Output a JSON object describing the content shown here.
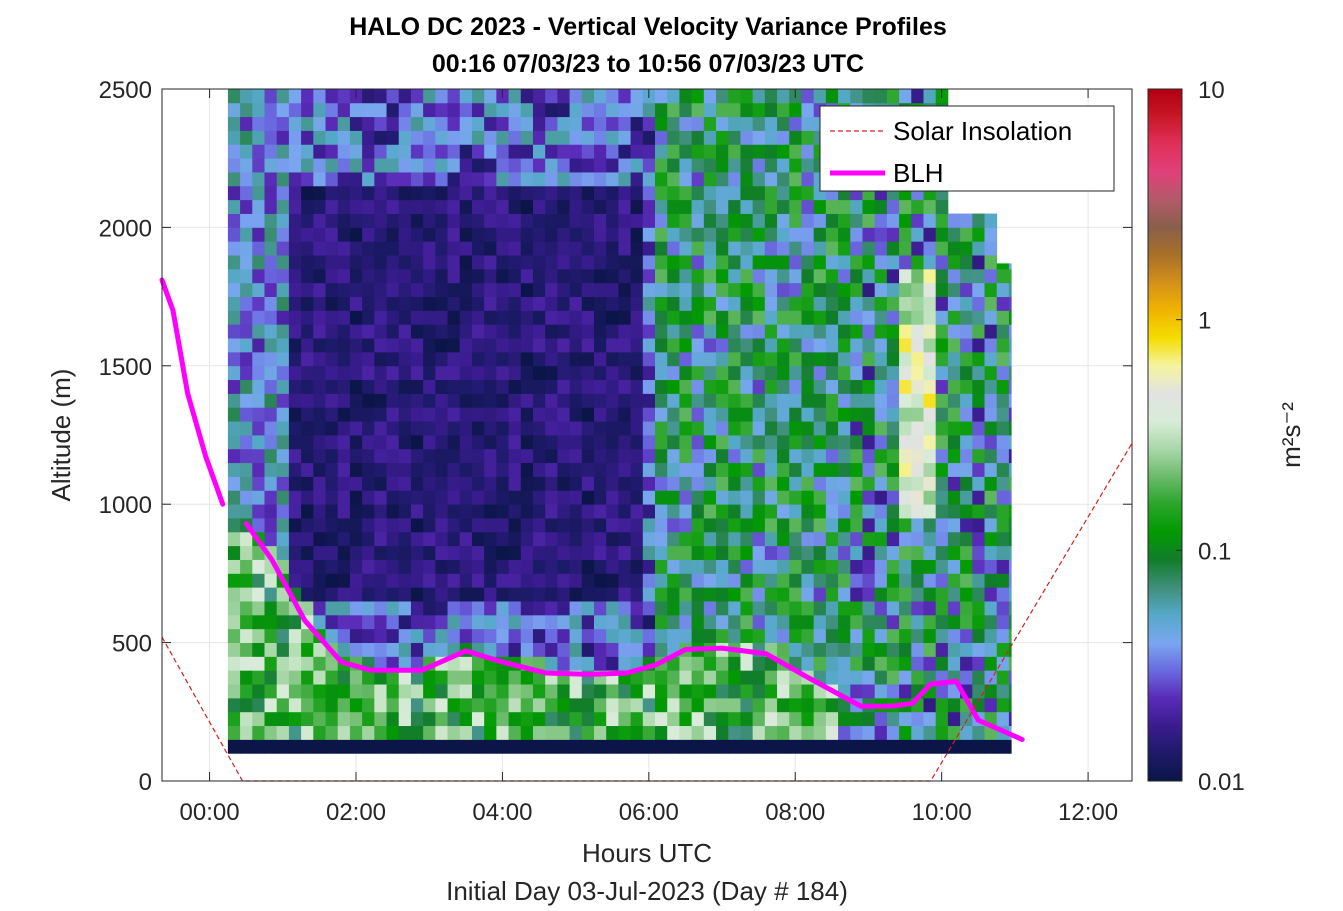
{
  "chart_data": {
    "type": "heatmap",
    "title": "HALO DC 2023 - Vertical Velocity Variance Profiles",
    "subtitle": "00:16 07/03/23 to 10:56 07/03/23  UTC",
    "xlabel": "Hours UTC",
    "xlabel2": "Initial Day 03-Jul-2023 (Day # 184)",
    "ylabel": "Altitude (m)",
    "xlim": [
      -0.65,
      12.6
    ],
    "ylim": [
      0,
      2500
    ],
    "x_ticks": [
      0,
      2,
      4,
      6,
      8,
      10,
      12
    ],
    "x_tick_labels": [
      "00:00",
      "02:00",
      "04:00",
      "06:00",
      "08:00",
      "10:00",
      "12:00"
    ],
    "y_ticks": [
      0,
      500,
      1000,
      1500,
      2000,
      2500
    ],
    "y_tick_labels": [
      "0",
      "500",
      "1000",
      "1500",
      "2000",
      "2500"
    ],
    "grid": true,
    "colorbar": {
      "label": "m²s⁻²",
      "scale": "log",
      "range": [
        0.01,
        10
      ],
      "ticks": [
        0.01,
        0.1,
        1,
        10
      ],
      "tick_labels": [
        "0.01",
        "0.1",
        "1",
        "10"
      ],
      "colors": [
        "#0b1547",
        "#1e1a6a",
        "#3a1c8f",
        "#5a2bb8",
        "#6a6ae0",
        "#7aa6f0",
        "#55a9c8",
        "#3f8f7a",
        "#117d2a",
        "#029a02",
        "#2aa52a",
        "#6bbb6b",
        "#a9d8a9",
        "#d8ecd8",
        "#e2e2e2",
        "#f4f4a0",
        "#f5dd00",
        "#f0b400",
        "#d4901a",
        "#a87028",
        "#8a5f4a",
        "#b25a6a",
        "#e0407a",
        "#e0305a",
        "#c81828",
        "#b00010"
      ]
    },
    "legend": {
      "placement": "top-right",
      "entries": [
        {
          "label": "Solar Insolation",
          "color": "#d62020",
          "style": "dashed"
        },
        {
          "label": "BLH",
          "color": "#ff00ff",
          "style": "solid"
        }
      ]
    },
    "heatmap_grid": {
      "x_start": 0.25,
      "x_end": 10.95,
      "x_step": 0.1667,
      "y_start": 100,
      "y_end": 2500,
      "y_step": 50
    },
    "series": [
      {
        "name": "BLH",
        "x": [
          -0.65,
          -0.5,
          -0.3,
          -0.05,
          0.18
        ],
        "y": [
          1810,
          1700,
          1400,
          1170,
          1000
        ]
      },
      {
        "name": "BLH",
        "x": [
          0.5,
          0.85,
          1.3,
          1.8,
          2.2,
          2.9,
          3.5,
          4.0,
          4.6,
          5.2,
          5.7,
          6.1,
          6.5,
          7.0,
          7.6,
          8.2,
          8.9,
          9.3,
          9.6,
          9.85,
          10.2,
          10.5,
          11.1
        ],
        "y": [
          930,
          800,
          580,
          430,
          400,
          400,
          470,
          430,
          390,
          385,
          390,
          420,
          475,
          480,
          460,
          370,
          270,
          270,
          280,
          350,
          360,
          220,
          150
        ]
      },
      {
        "name": "Solar Insolation",
        "x": [
          -0.65,
          0.45,
          9.85,
          12.6
        ],
        "y": [
          520,
          0,
          0,
          1220
        ]
      }
    ]
  }
}
